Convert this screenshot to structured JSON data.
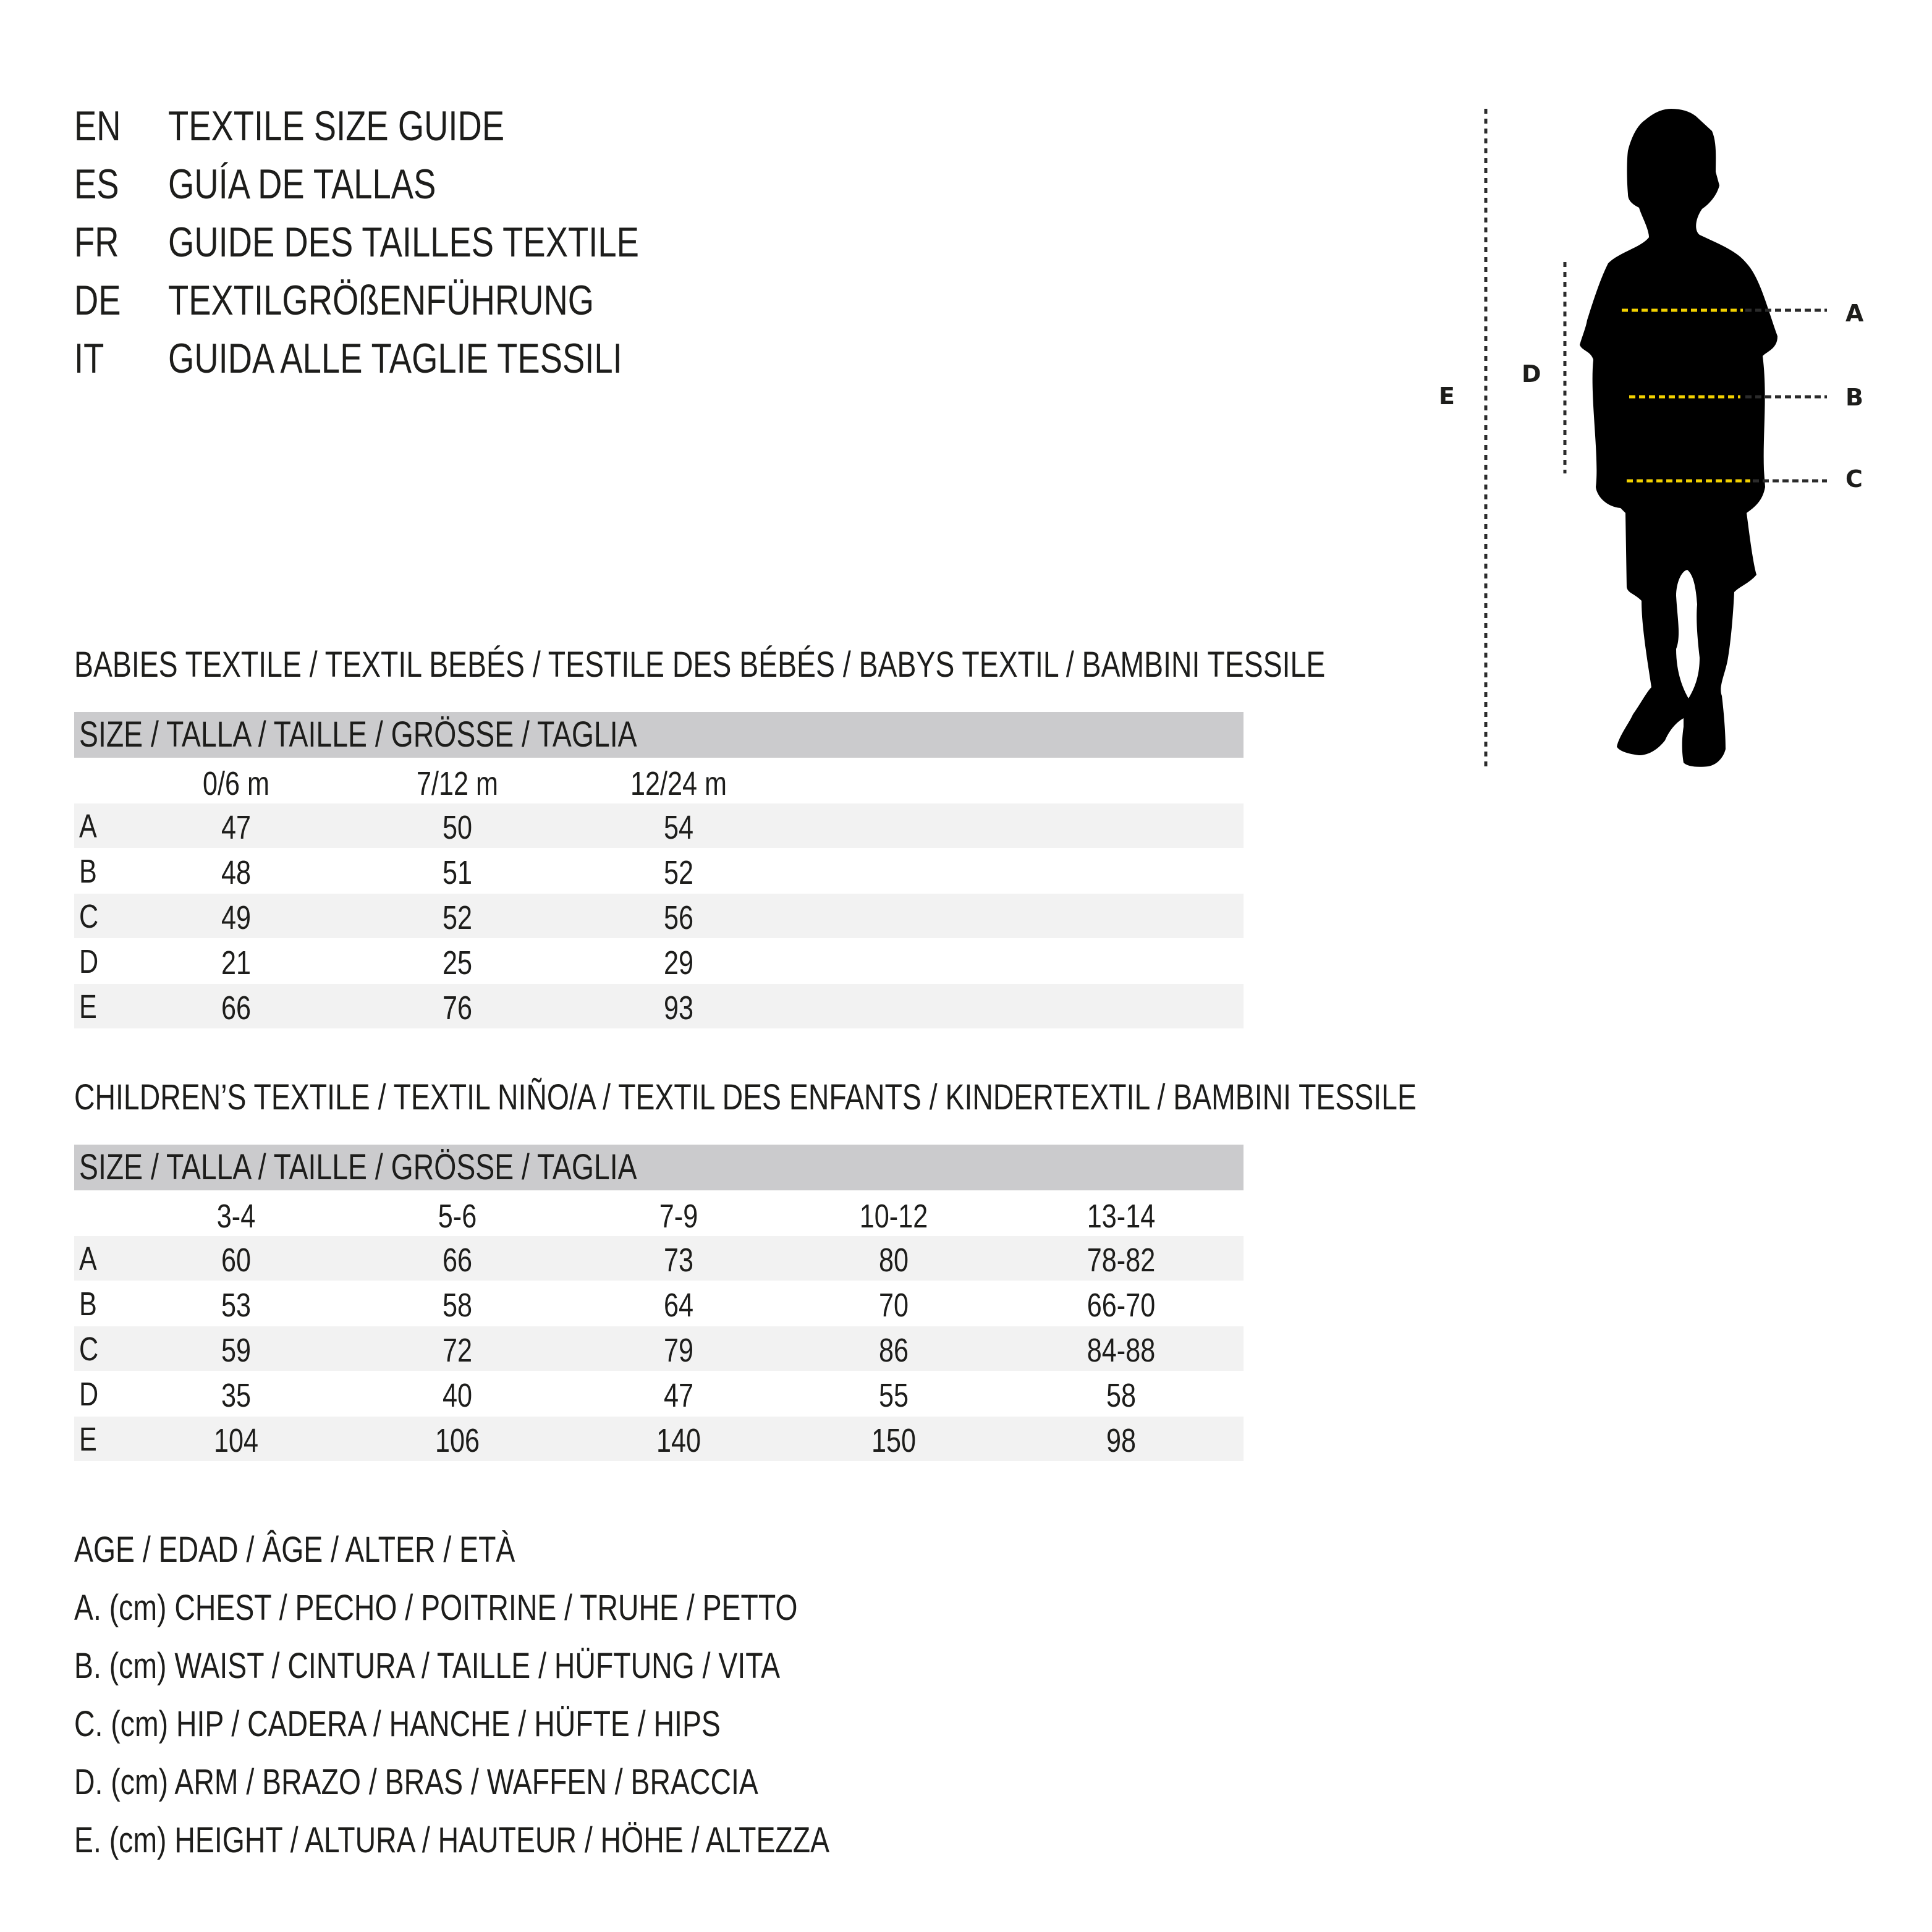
{
  "titles": [
    {
      "code": "EN",
      "text": "TEXTILE SIZE GUIDE"
    },
    {
      "code": "ES",
      "text": "GUÍA DE TALLAS"
    },
    {
      "code": "FR",
      "text": "GUIDE DES TAILLES TEXTILE"
    },
    {
      "code": "DE",
      "text": "TEXTILGRÖßENFÜHRUNG"
    },
    {
      "code": "IT",
      "text": "GUIDA ALLE TAGLIE TESSILI"
    }
  ],
  "tables": [
    {
      "title": "BABIES TEXTILE / TEXTIL BEBÉS / TESTILE DES BÉBÉS / BABYS TEXTIL / BAMBINI TESSILE",
      "size_header": "SIZE / TALLA / TAILLE / GRÖSSE / TAGLIA",
      "columns": [
        "0/6 m",
        "7/12 m",
        "12/24 m"
      ],
      "rows": [
        {
          "label": "A",
          "values": [
            "47",
            "50",
            "54"
          ]
        },
        {
          "label": "B",
          "values": [
            "48",
            "51",
            "52"
          ]
        },
        {
          "label": "C",
          "values": [
            "49",
            "52",
            "56"
          ]
        },
        {
          "label": "D",
          "values": [
            "21",
            "25",
            "29"
          ]
        },
        {
          "label": "E",
          "values": [
            "66",
            "76",
            "93"
          ]
        }
      ]
    },
    {
      "title": "CHILDREN’S TEXTILE / TEXTIL NIÑO/A / TEXTIL DES ENFANTS / KINDERTEXTIL / BAMBINI TESSILE",
      "size_header": "SIZE / TALLA / TAILLE / GRÖSSE / TAGLIA",
      "columns": [
        "3-4",
        "5-6",
        "7-9",
        "10-12",
        "13-14"
      ],
      "rows": [
        {
          "label": "A",
          "values": [
            "60",
            "66",
            "73",
            "80",
            "78-82"
          ]
        },
        {
          "label": "B",
          "values": [
            "53",
            "58",
            "64",
            "70",
            "66-70"
          ]
        },
        {
          "label": "C",
          "values": [
            "59",
            "72",
            "79",
            "86",
            "84-88"
          ]
        },
        {
          "label": "D",
          "values": [
            "35",
            "40",
            "47",
            "55",
            "58"
          ]
        },
        {
          "label": "E",
          "values": [
            "104",
            "106",
            "140",
            "150",
            "98"
          ]
        }
      ]
    }
  ],
  "legend": [
    "AGE / EDAD / ÂGE / ALTER / ETÀ",
    "A. (cm) CHEST / PECHO / POITRINE / TRUHE / PETTO",
    "B. (cm) WAIST / CINTURA / TAILLE / HÜFTUNG / VITA",
    "C. (cm) HIP / CADERA / HANCHE / HÜFTE / HIPS",
    "D. (cm) ARM / BRAZO / BRAS / WAFFEN / BRACCIA",
    "E. (cm) HEIGHT / ALTURA / HAUTEUR / HÖHE / ALTEZZA"
  ],
  "figure": {
    "icon": "child-silhouette",
    "labels": {
      "A": "A",
      "B": "B",
      "C": "C",
      "D": "D",
      "E": "E"
    },
    "colors": {
      "silhouette": "#000000",
      "measure_line": "#f2d100",
      "guide_line": "#2b2b2b",
      "header_band": "#cbcbcd",
      "row_shade": "#f2f2f2"
    }
  }
}
